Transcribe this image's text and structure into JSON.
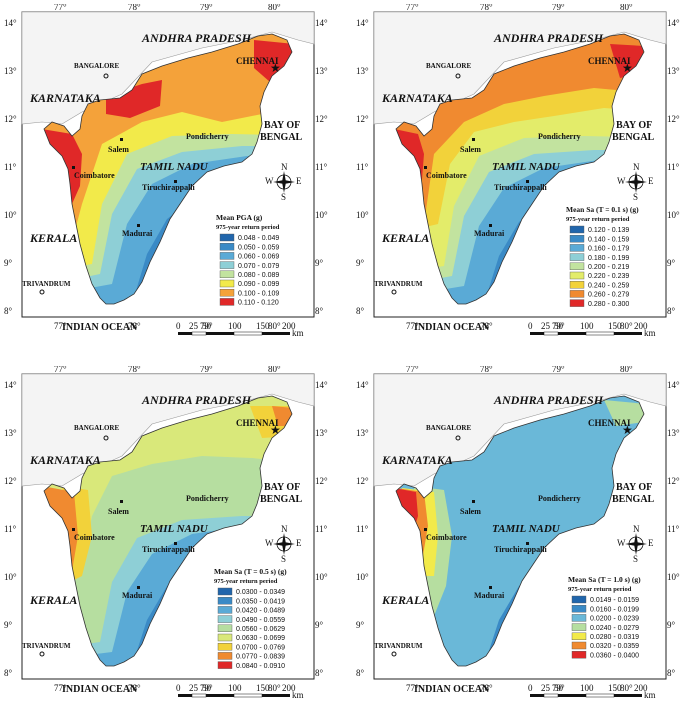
{
  "common": {
    "longitudes": [
      "77°",
      "78°",
      "79°",
      "80°"
    ],
    "latitudes": [
      "14°",
      "13°",
      "12°",
      "11°",
      "10°",
      "9°",
      "8°"
    ],
    "state_labels": {
      "andhra": "ANDHRA PRADESH",
      "karnataka": "KARNATAKA",
      "kerala": "KERALA",
      "tamilnadu": "TAMIL NADU"
    },
    "water_labels": {
      "bay_line1": "BAY OF",
      "bay_line2": "BENGAL",
      "ocean": "INDIAN OCEAN"
    },
    "cities": {
      "chennai": "CHENNAI",
      "bangalore": "BANGALORE",
      "pondicherry": "Pondicherry",
      "salem": "Salem",
      "coimbatore": "Coimbatore",
      "tiruchirappalli": "Tiruchirappalli",
      "madurai": "Madurai",
      "trivandrum": "TRIVANDRUM"
    },
    "scale": {
      "ticks": [
        "0",
        "25",
        "50",
        "100",
        "150",
        "200"
      ],
      "unit": "km"
    },
    "compass": {
      "n": "N",
      "s": "S",
      "e": "E",
      "w": "W"
    },
    "return_period": "975-year return period"
  },
  "panels": [
    {
      "legend_title": "Mean PGA (g)",
      "subtitle": "975-year return period",
      "classes": [
        {
          "label": "0.048 - 0.049",
          "color": "#2166ac"
        },
        {
          "label": "0.050 - 0.059",
          "color": "#3a8ac6"
        },
        {
          "label": "0.060 - 0.069",
          "color": "#5aaad6"
        },
        {
          "label": "0.070 - 0.079",
          "color": "#8ecfd6"
        },
        {
          "label": "0.080 - 0.089",
          "color": "#c2e39f"
        },
        {
          "label": "0.090 - 0.099",
          "color": "#f2ea4a"
        },
        {
          "label": "0.100 - 0.109",
          "color": "#f4a23a"
        },
        {
          "label": "0.110 - 0.120",
          "color": "#e02828"
        }
      ]
    },
    {
      "legend_title": "Mean Sa (T = 0.1 s) (g)",
      "subtitle": "975-year return period",
      "classes": [
        {
          "label": "0.120 - 0.139",
          "color": "#2166ac"
        },
        {
          "label": "0.140 - 0.159",
          "color": "#3a8ac6"
        },
        {
          "label": "0.160 - 0.179",
          "color": "#5aaad6"
        },
        {
          "label": "0.180 - 0.199",
          "color": "#8ecfd6"
        },
        {
          "label": "0.200 - 0.219",
          "color": "#c2e39f"
        },
        {
          "label": "0.220 - 0.239",
          "color": "#e3ec6a"
        },
        {
          "label": "0.240 - 0.259",
          "color": "#f2d23a"
        },
        {
          "label": "0.260 - 0.279",
          "color": "#f08a30"
        },
        {
          "label": "0.280 - 0.300",
          "color": "#e02828"
        }
      ]
    },
    {
      "legend_title": "Mean Sa (T = 0.5 s) (g)",
      "subtitle": "975-year return period",
      "classes": [
        {
          "label": "0.0300 - 0.0349",
          "color": "#2166ac"
        },
        {
          "label": "0.0350 - 0.0419",
          "color": "#3a8ac6"
        },
        {
          "label": "0.0420 - 0.0489",
          "color": "#5aaad6"
        },
        {
          "label": "0.0490 - 0.0559",
          "color": "#8ecfd6"
        },
        {
          "label": "0.0560 - 0.0629",
          "color": "#b6dea0"
        },
        {
          "label": "0.0630 - 0.0699",
          "color": "#d9e87a"
        },
        {
          "label": "0.0700 - 0.0769",
          "color": "#f2d23a"
        },
        {
          "label": "0.0770 - 0.0839",
          "color": "#f08a30"
        },
        {
          "label": "0.0840 - 0.0910",
          "color": "#e02828"
        }
      ]
    },
    {
      "legend_title": "Mean Sa (T = 1.0 s) (g)",
      "subtitle": "975-year return period",
      "classes": [
        {
          "label": "0.0149 - 0.0159",
          "color": "#2166ac"
        },
        {
          "label": "0.0160 - 0.0199",
          "color": "#3a8ac6"
        },
        {
          "label": "0.0200 - 0.0239",
          "color": "#6ab8d8"
        },
        {
          "label": "0.0240 - 0.0279",
          "color": "#b6dea0"
        },
        {
          "label": "0.0280 - 0.0319",
          "color": "#f2ea4a"
        },
        {
          "label": "0.0320 - 0.0359",
          "color": "#f08a30"
        },
        {
          "label": "0.0360 - 0.0400",
          "color": "#e02828"
        }
      ]
    }
  ]
}
